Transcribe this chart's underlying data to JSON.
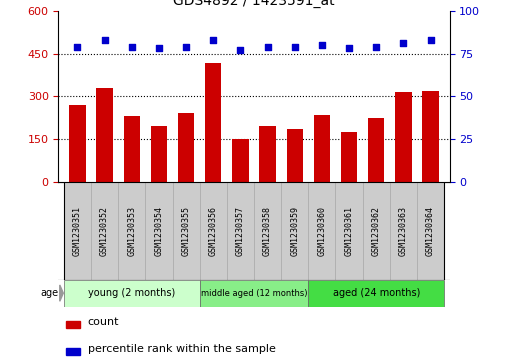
{
  "title": "GDS4892 / 1423591_at",
  "samples": [
    "GSM1230351",
    "GSM1230352",
    "GSM1230353",
    "GSM1230354",
    "GSM1230355",
    "GSM1230356",
    "GSM1230357",
    "GSM1230358",
    "GSM1230359",
    "GSM1230360",
    "GSM1230361",
    "GSM1230362",
    "GSM1230363",
    "GSM1230364"
  ],
  "counts": [
    270,
    330,
    230,
    195,
    240,
    415,
    148,
    195,
    185,
    235,
    175,
    225,
    315,
    320
  ],
  "percentile_ranks": [
    79,
    83,
    79,
    78,
    79,
    83,
    77,
    79,
    79,
    80,
    78,
    79,
    81,
    83
  ],
  "groups": [
    {
      "label": "young (2 months)",
      "start": 0,
      "end": 5
    },
    {
      "label": "middle aged (12 months)",
      "start": 5,
      "end": 9
    },
    {
      "label": "aged (24 months)",
      "start": 9,
      "end": 14
    }
  ],
  "group_colors": [
    "#ccffcc",
    "#88ee88",
    "#44dd44"
  ],
  "ylim_left": [
    0,
    600
  ],
  "ylim_right": [
    0,
    100
  ],
  "yticks_left": [
    0,
    150,
    300,
    450,
    600
  ],
  "yticks_right": [
    0,
    25,
    50,
    75,
    100
  ],
  "bar_color": "#cc0000",
  "dot_color": "#0000cc",
  "bar_width": 0.6,
  "sample_box_color": "#cccccc",
  "grid_dotted_levels": [
    150,
    300,
    450
  ]
}
